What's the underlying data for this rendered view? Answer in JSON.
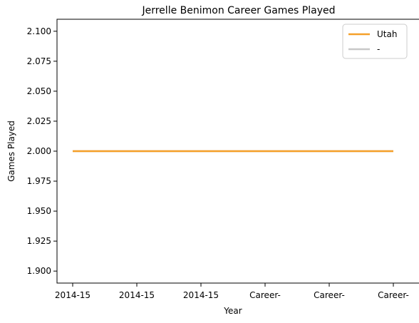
{
  "chart_data": {
    "type": "line",
    "title": "Jerrelle Benimon Career Games Played",
    "xlabel": "Year",
    "ylabel": "Games Played",
    "categories": [
      "2014-15",
      "2014-15",
      "2014-15",
      "Career-",
      "Career-",
      "Career-"
    ],
    "ylim": [
      1.89,
      2.11
    ],
    "yticks": [
      "1.900",
      "1.925",
      "1.950",
      "1.975",
      "2.000",
      "2.025",
      "2.050",
      "2.075",
      "2.100"
    ],
    "series": [
      {
        "name": "Utah",
        "values": [
          2,
          2,
          2,
          2,
          2,
          2
        ],
        "color": "#f5a02a"
      },
      {
        "name": "-",
        "values": [
          2,
          2,
          2,
          2,
          2,
          2
        ],
        "color": "#c8c8c8"
      }
    ],
    "legend": "top-right",
    "grid": false
  }
}
